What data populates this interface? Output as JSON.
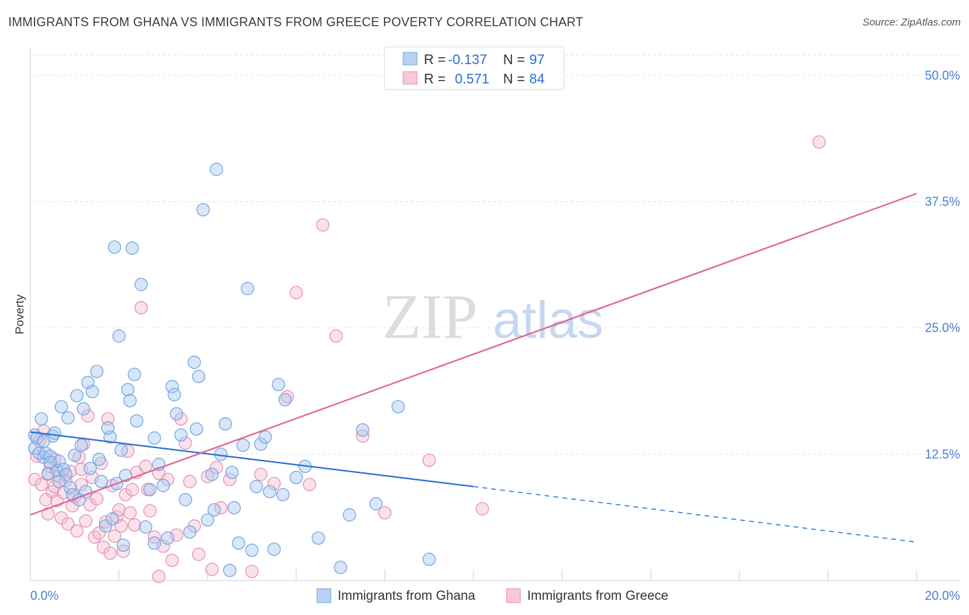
{
  "title": "IMMIGRANTS FROM GHANA VS IMMIGRANTS FROM GREECE POVERTY CORRELATION CHART",
  "source": "Source: ZipAtlas.com",
  "watermark": {
    "zip": "ZIP",
    "atlas": "atlas"
  },
  "chart_data": {
    "type": "scatter",
    "xlabel": "",
    "ylabel": "Poverty",
    "xlim": [
      0,
      20
    ],
    "ylim": [
      0,
      52
    ],
    "x_tick_labels": [
      "0.0%",
      "20.0%"
    ],
    "y_ticks": [
      12.5,
      25.0,
      37.5,
      50.0
    ],
    "y_tick_labels": [
      "12.5%",
      "25.0%",
      "37.5%",
      "50.0%"
    ],
    "legend": [
      {
        "r_label": "R =",
        "r_value": "-0.137",
        "n_label": "N =",
        "n_value": "97"
      },
      {
        "r_label": "R =",
        "r_value": "0.571",
        "n_label": "N =",
        "n_value": "84"
      }
    ],
    "series": [
      {
        "name": "Immigrants from Ghana",
        "color": "#6fa3e0",
        "fill": "#a9c8ef",
        "line_color": "#2d6fd1",
        "trend": {
          "x0": 0.0,
          "y0": 14.7,
          "x1": 10.0,
          "y1": 9.3,
          "dash_x1": 20.0,
          "dash_y1": 3.8
        },
        "points": [
          [
            0.1,
            14.4
          ],
          [
            0.1,
            13.1
          ],
          [
            0.15,
            14.1
          ],
          [
            0.2,
            12.6
          ],
          [
            0.25,
            16.0
          ],
          [
            0.3,
            12.2
          ],
          [
            0.35,
            12.6
          ],
          [
            0.4,
            10.6
          ],
          [
            0.45,
            12.3
          ],
          [
            0.5,
            14.3
          ],
          [
            0.55,
            14.6
          ],
          [
            0.6,
            10.9
          ],
          [
            0.65,
            11.8
          ],
          [
            0.7,
            17.2
          ],
          [
            0.75,
            11.0
          ],
          [
            0.8,
            10.5
          ],
          [
            0.85,
            16.1
          ],
          [
            0.9,
            9.2
          ],
          [
            0.95,
            8.5
          ],
          [
            1.0,
            12.4
          ],
          [
            1.05,
            18.3
          ],
          [
            1.1,
            8.0
          ],
          [
            1.2,
            17.0
          ],
          [
            1.3,
            19.6
          ],
          [
            1.35,
            11.1
          ],
          [
            1.4,
            18.7
          ],
          [
            1.5,
            20.7
          ],
          [
            1.55,
            12.0
          ],
          [
            1.6,
            9.8
          ],
          [
            1.7,
            5.4
          ],
          [
            1.8,
            14.2
          ],
          [
            1.85,
            6.1
          ],
          [
            1.9,
            33.0
          ],
          [
            1.95,
            9.6
          ],
          [
            2.0,
            24.2
          ],
          [
            2.1,
            3.5
          ],
          [
            2.15,
            10.4
          ],
          [
            2.2,
            18.9
          ],
          [
            2.25,
            17.8
          ],
          [
            2.3,
            32.9
          ],
          [
            2.35,
            20.4
          ],
          [
            2.4,
            15.8
          ],
          [
            2.5,
            29.3
          ],
          [
            2.6,
            5.3
          ],
          [
            2.7,
            9.0
          ],
          [
            2.8,
            14.1
          ],
          [
            2.9,
            11.5
          ],
          [
            3.0,
            9.4
          ],
          [
            3.1,
            4.2
          ],
          [
            3.2,
            19.2
          ],
          [
            3.3,
            16.5
          ],
          [
            3.4,
            14.4
          ],
          [
            3.5,
            8.0
          ],
          [
            3.6,
            4.8
          ],
          [
            3.7,
            21.6
          ],
          [
            3.8,
            20.2
          ],
          [
            3.9,
            36.7
          ],
          [
            4.0,
            6.0
          ],
          [
            4.1,
            10.5
          ],
          [
            4.15,
            7.0
          ],
          [
            4.2,
            40.7
          ],
          [
            4.3,
            12.5
          ],
          [
            4.4,
            15.5
          ],
          [
            4.5,
            1.0
          ],
          [
            4.6,
            7.2
          ],
          [
            4.7,
            3.7
          ],
          [
            4.8,
            13.4
          ],
          [
            4.9,
            28.9
          ],
          [
            5.0,
            3.0
          ],
          [
            5.1,
            9.3
          ],
          [
            5.2,
            13.5
          ],
          [
            5.3,
            14.2
          ],
          [
            5.4,
            8.8
          ],
          [
            5.5,
            3.1
          ],
          [
            5.6,
            19.4
          ],
          [
            5.7,
            8.5
          ],
          [
            5.75,
            17.9
          ],
          [
            6.0,
            10.2
          ],
          [
            6.2,
            11.3
          ],
          [
            6.5,
            4.2
          ],
          [
            7.0,
            1.3
          ],
          [
            7.2,
            6.5
          ],
          [
            7.5,
            14.9
          ],
          [
            7.8,
            7.6
          ],
          [
            8.3,
            17.2
          ],
          [
            9.0,
            2.1
          ],
          [
            2.8,
            3.7
          ],
          [
            1.15,
            13.4
          ],
          [
            0.3,
            13.8
          ],
          [
            0.45,
            11.7
          ],
          [
            0.65,
            9.8
          ],
          [
            1.25,
            8.8
          ],
          [
            2.05,
            12.9
          ],
          [
            3.25,
            18.4
          ],
          [
            3.75,
            15.0
          ],
          [
            4.55,
            10.7
          ],
          [
            1.75,
            15.1
          ]
        ]
      },
      {
        "name": "Immigrants from Greece",
        "color": "#e98cae",
        "fill": "#f5bfd3",
        "line_color": "#e06493",
        "trend": {
          "x0": 0.0,
          "y0": 6.5,
          "x1": 20.0,
          "y1": 38.3
        },
        "points": [
          [
            0.1,
            10.0
          ],
          [
            0.15,
            12.3
          ],
          [
            0.2,
            13.8
          ],
          [
            0.25,
            9.5
          ],
          [
            0.3,
            14.8
          ],
          [
            0.35,
            8.0
          ],
          [
            0.4,
            10.5
          ],
          [
            0.45,
            11.3
          ],
          [
            0.5,
            8.8
          ],
          [
            0.55,
            9.3
          ],
          [
            0.6,
            7.9
          ],
          [
            0.65,
            10.3
          ],
          [
            0.7,
            6.2
          ],
          [
            0.75,
            8.7
          ],
          [
            0.8,
            9.9
          ],
          [
            0.85,
            5.6
          ],
          [
            0.9,
            10.8
          ],
          [
            0.95,
            7.4
          ],
          [
            1.0,
            8.3
          ],
          [
            1.05,
            4.9
          ],
          [
            1.1,
            12.2
          ],
          [
            1.15,
            9.5
          ],
          [
            1.2,
            13.5
          ],
          [
            1.25,
            5.9
          ],
          [
            1.3,
            16.3
          ],
          [
            1.35,
            7.5
          ],
          [
            1.4,
            10.2
          ],
          [
            1.45,
            4.3
          ],
          [
            1.5,
            8.1
          ],
          [
            1.55,
            4.7
          ],
          [
            1.6,
            11.6
          ],
          [
            1.65,
            3.3
          ],
          [
            1.7,
            5.8
          ],
          [
            1.75,
            16.0
          ],
          [
            1.8,
            2.7
          ],
          [
            1.85,
            9.4
          ],
          [
            1.9,
            4.4
          ],
          [
            1.95,
            6.3
          ],
          [
            2.0,
            7.0
          ],
          [
            2.05,
            5.4
          ],
          [
            2.1,
            2.9
          ],
          [
            2.15,
            8.5
          ],
          [
            2.2,
            12.8
          ],
          [
            2.25,
            6.7
          ],
          [
            2.3,
            9.0
          ],
          [
            2.35,
            5.5
          ],
          [
            2.4,
            10.7
          ],
          [
            2.5,
            27.0
          ],
          [
            2.6,
            11.3
          ],
          [
            2.7,
            6.9
          ],
          [
            2.8,
            4.3
          ],
          [
            2.9,
            10.6
          ],
          [
            3.0,
            3.4
          ],
          [
            3.1,
            10.0
          ],
          [
            3.2,
            2.0
          ],
          [
            3.3,
            4.5
          ],
          [
            3.4,
            16.0
          ],
          [
            3.5,
            13.6
          ],
          [
            3.6,
            9.8
          ],
          [
            3.7,
            5.4
          ],
          [
            3.8,
            2.6
          ],
          [
            4.0,
            10.3
          ],
          [
            4.2,
            11.2
          ],
          [
            4.3,
            7.2
          ],
          [
            4.5,
            10.0
          ],
          [
            5.0,
            0.9
          ],
          [
            5.2,
            10.5
          ],
          [
            5.5,
            9.6
          ],
          [
            5.8,
            18.2
          ],
          [
            6.0,
            28.5
          ],
          [
            6.3,
            9.5
          ],
          [
            6.6,
            35.2
          ],
          [
            6.9,
            24.2
          ],
          [
            7.5,
            14.3
          ],
          [
            8.0,
            6.7
          ],
          [
            9.0,
            11.9
          ],
          [
            10.2,
            7.1
          ],
          [
            17.8,
            43.4
          ],
          [
            1.15,
            11.0
          ],
          [
            0.55,
            12.0
          ],
          [
            0.4,
            6.6
          ],
          [
            2.9,
            0.4
          ],
          [
            4.1,
            1.1
          ],
          [
            2.65,
            9.0
          ]
        ]
      }
    ]
  }
}
